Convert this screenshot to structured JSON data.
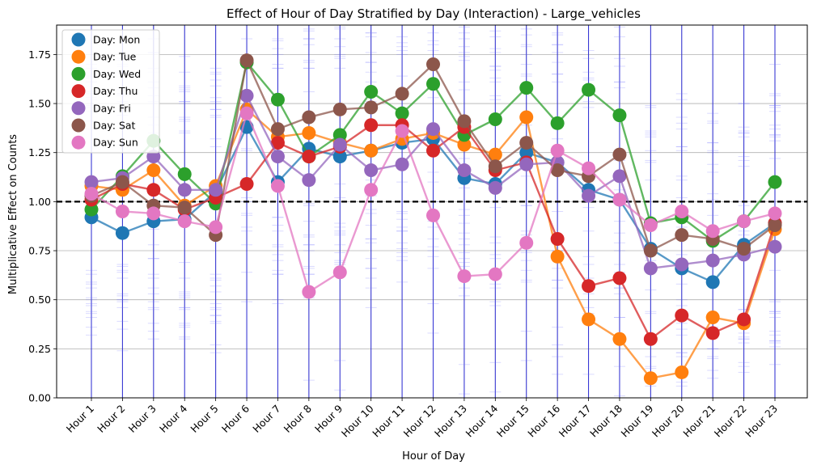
{
  "chart_data": {
    "type": "line",
    "title": "Effect of Hour of Day Stratified by Day (Interaction) - Large_vehicles",
    "xlabel": "Hour of Day",
    "ylabel": "Multiplicative Effect on Counts",
    "categories": [
      "Hour 1",
      "Hour 2",
      "Hour 3",
      "Hour 4",
      "Hour 5",
      "Hour 6",
      "Hour 7",
      "Hour 8",
      "Hour 9",
      "Hour 10",
      "Hour 11",
      "Hour 12",
      "Hour 13",
      "Hour 14",
      "Hour 15",
      "Hour 16",
      "Hour 17",
      "Hour 18",
      "Hour 19",
      "Hour 20",
      "Hour 21",
      "Hour 22",
      "Hour 23"
    ],
    "ylim": [
      0,
      1.9
    ],
    "yticks": [
      "0.00",
      "0.25",
      "0.50",
      "0.75",
      "1.00",
      "1.25",
      "1.50",
      "1.75"
    ],
    "reference_line": 1.0,
    "grid": true,
    "legend_position": "top-left",
    "series": [
      {
        "name": "Day: Mon",
        "color": "#1f77b4",
        "values": [
          0.92,
          0.84,
          0.9,
          0.91,
          1.05,
          1.38,
          1.1,
          1.27,
          1.23,
          1.26,
          1.3,
          1.32,
          1.12,
          1.09,
          1.25,
          1.2,
          1.06,
          1.01,
          0.76,
          0.66,
          0.59,
          0.78,
          0.89
        ]
      },
      {
        "name": "Day: Tue",
        "color": "#ff7f0e",
        "values": [
          1.08,
          1.06,
          1.16,
          0.98,
          1.08,
          1.47,
          1.33,
          1.35,
          1.3,
          1.26,
          1.32,
          1.35,
          1.29,
          1.24,
          1.43,
          0.72,
          0.4,
          0.3,
          0.1,
          0.13,
          0.41,
          0.38,
          0.86
        ]
      },
      {
        "name": "Day: Wed",
        "color": "#2ca02c",
        "values": [
          0.96,
          1.13,
          1.31,
          1.14,
          0.99,
          1.71,
          1.52,
          1.23,
          1.34,
          1.56,
          1.45,
          1.6,
          1.34,
          1.42,
          1.58,
          1.4,
          1.57,
          1.44,
          0.89,
          0.92,
          0.8,
          0.9,
          1.1
        ]
      },
      {
        "name": "Day: Thu",
        "color": "#d62728",
        "values": [
          1.01,
          1.09,
          1.06,
          0.96,
          1.02,
          1.09,
          1.3,
          1.23,
          1.28,
          1.39,
          1.39,
          1.26,
          1.38,
          1.16,
          1.2,
          0.81,
          0.57,
          0.61,
          0.3,
          0.42,
          0.33,
          0.4,
          0.89
        ]
      },
      {
        "name": "Day: Fri",
        "color": "#9467bd",
        "values": [
          1.1,
          1.12,
          1.23,
          1.06,
          1.06,
          1.54,
          1.23,
          1.11,
          1.29,
          1.16,
          1.19,
          1.37,
          1.16,
          1.07,
          1.19,
          1.2,
          1.03,
          1.13,
          0.66,
          0.68,
          0.7,
          0.73,
          0.77
        ]
      },
      {
        "name": "Day: Sat",
        "color": "#8c564b",
        "values": [
          1.03,
          1.1,
          0.98,
          0.97,
          0.83,
          1.72,
          1.37,
          1.43,
          1.47,
          1.48,
          1.55,
          1.7,
          1.41,
          1.18,
          1.3,
          1.16,
          1.13,
          1.24,
          0.75,
          0.83,
          0.81,
          0.76,
          0.88
        ]
      },
      {
        "name": "Day: Sun",
        "color": "#e377c2",
        "values": [
          1.04,
          0.95,
          0.94,
          0.9,
          0.87,
          1.45,
          1.08,
          0.54,
          0.64,
          1.06,
          1.36,
          0.93,
          0.62,
          0.63,
          0.79,
          1.26,
          1.17,
          1.01,
          0.88,
          0.95,
          0.85,
          0.9,
          0.94
        ]
      }
    ]
  }
}
